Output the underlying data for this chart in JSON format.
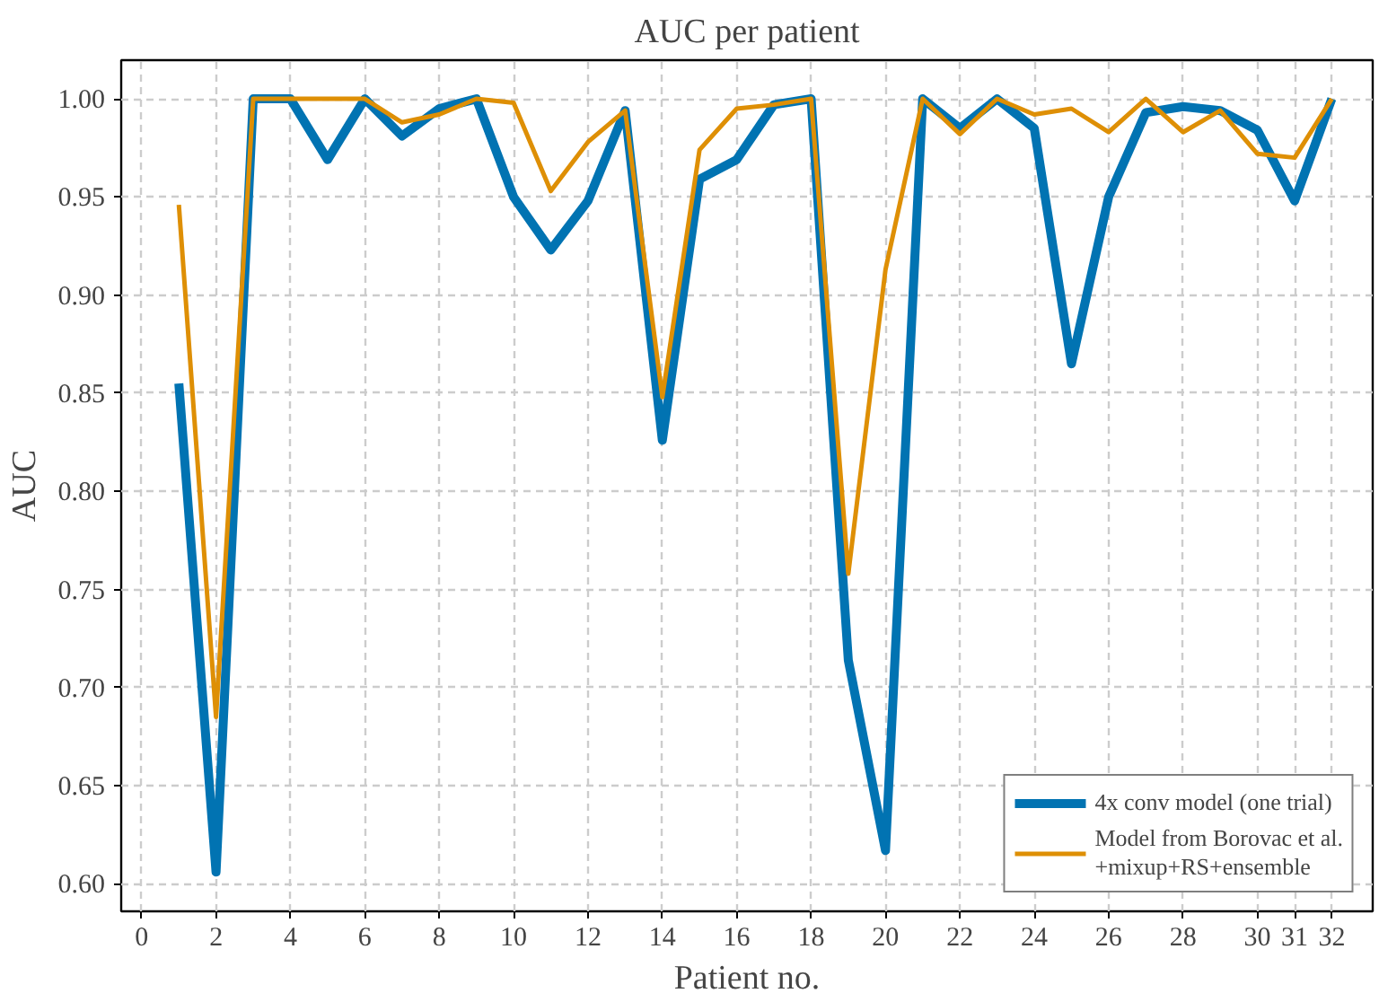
{
  "chart_data": {
    "type": "line",
    "title": "AUC per patient",
    "xlabel": "Patient no.",
    "ylabel": "AUC",
    "x": [
      1,
      2,
      3,
      4,
      5,
      6,
      7,
      8,
      9,
      10,
      11,
      12,
      13,
      14,
      15,
      16,
      17,
      18,
      19,
      20,
      21,
      22,
      23,
      24,
      25,
      26,
      27,
      28,
      29,
      30,
      31,
      32
    ],
    "series": [
      {
        "name": "4x conv model (one trial)",
        "color": "#0173b2",
        "values": [
          0.855,
          0.606,
          1.0,
          1.0,
          0.969,
          1.0,
          0.981,
          0.995,
          1.0,
          0.95,
          0.923,
          0.948,
          0.994,
          0.826,
          0.959,
          0.969,
          0.997,
          1.0,
          0.714,
          0.617,
          1.0,
          0.985,
          1.0,
          0.985,
          0.865,
          0.95,
          0.993,
          0.996,
          0.994,
          0.984,
          0.948,
          1.0
        ]
      },
      {
        "name": "Model from Borovac et al.\n+mixup+RS+ensemble",
        "color": "#de8f05",
        "values": [
          0.946,
          0.685,
          1.0,
          1.0,
          1.0,
          1.0,
          0.988,
          0.992,
          1.0,
          0.998,
          0.953,
          0.978,
          0.994,
          0.848,
          0.974,
          0.995,
          0.997,
          1.0,
          0.758,
          0.913,
          1.0,
          0.982,
          1.0,
          0.992,
          0.995,
          0.983,
          1.0,
          0.983,
          0.994,
          0.972,
          0.97,
          1.0
        ]
      }
    ],
    "xlim": [
      -0.55,
      33.1
    ],
    "ylim": [
      0.586,
      1.0197
    ],
    "xticks": [
      0,
      2,
      4,
      6,
      8,
      10,
      12,
      14,
      16,
      18,
      20,
      22,
      24,
      26,
      28,
      30,
      31,
      32
    ],
    "yticks": [
      {
        "value": 0.6,
        "label": "0.60"
      },
      {
        "value": 0.65,
        "label": "0.65"
      },
      {
        "value": 0.7,
        "label": "0.70"
      },
      {
        "value": 0.75,
        "label": "0.75"
      },
      {
        "value": 0.8,
        "label": "0.80"
      },
      {
        "value": 0.85,
        "label": "0.85"
      },
      {
        "value": 0.9,
        "label": "0.90"
      },
      {
        "value": 0.95,
        "label": "0.95"
      },
      {
        "value": 1.0,
        "label": "1.00"
      }
    ],
    "grid": true,
    "legend": "bottom right",
    "line_style": "solid",
    "marker": "none"
  }
}
